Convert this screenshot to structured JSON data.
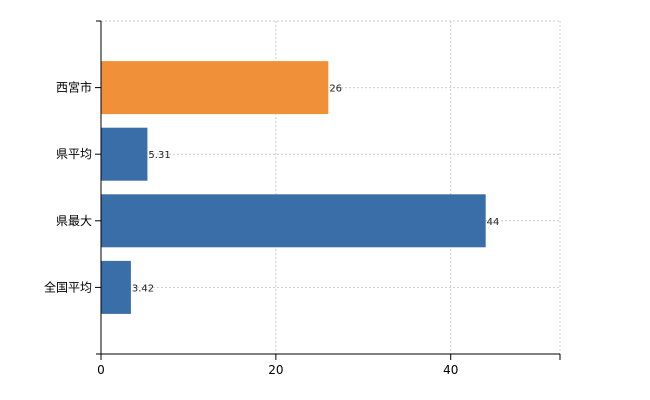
{
  "chart_data": {
    "type": "bar",
    "orientation": "horizontal",
    "categories": [
      "西宮市",
      "県平均",
      "県最大",
      "全国平均"
    ],
    "values": [
      26,
      5.31,
      44,
      3.42
    ],
    "data_labels": [
      "26",
      "5.31",
      "44",
      "3.42"
    ],
    "bar_colors": [
      "#f0913a",
      "#3a6ea8",
      "#3a6ea8",
      "#3a6ea8"
    ],
    "xlim": [
      0,
      52.5
    ],
    "x_ticks": [
      0,
      20,
      40
    ],
    "x_tick_labels": [
      "0",
      "20",
      "40"
    ],
    "grid": true,
    "title": "",
    "xlabel": "",
    "ylabel": ""
  }
}
